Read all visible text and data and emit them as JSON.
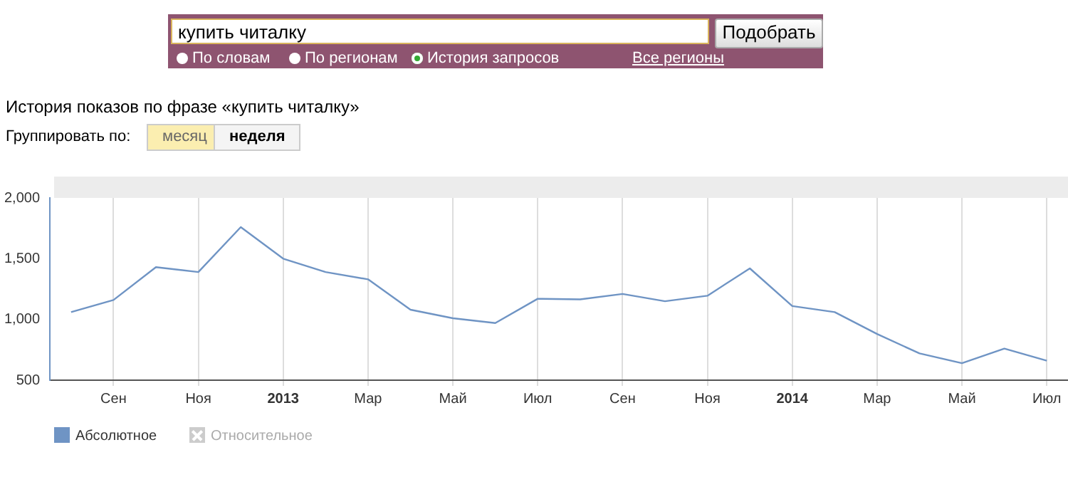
{
  "chart_data": {
    "type": "line",
    "title": "История показов по фразе «купить читалку»",
    "categories": [
      null,
      "Сен",
      null,
      "Ноя",
      null,
      "2013",
      null,
      "Мар",
      null,
      "Май",
      null,
      "Июл",
      null,
      "Сен",
      null,
      "Ноя",
      null,
      "2014",
      null,
      "Мар",
      null,
      "Май",
      null,
      "Июл"
    ],
    "series": [
      {
        "name": "Абсолютное",
        "color": "#6f94c4",
        "values": [
          1060,
          1160,
          1430,
          1390,
          1760,
          1500,
          1390,
          1330,
          1080,
          1010,
          970,
          1170,
          1165,
          1210,
          1150,
          1195,
          1420,
          1110,
          1060,
          880,
          720,
          640,
          760,
          660
        ]
      }
    ],
    "ylim": [
      500,
      2000
    ],
    "yticks": [
      {
        "value": 500,
        "label": "500"
      },
      {
        "value": 1000,
        "label": "1,000"
      },
      {
        "value": 1500,
        "label": "1,500"
      },
      {
        "value": 2000,
        "label": "2,000"
      }
    ],
    "grid": "x",
    "legend": "bottom left",
    "marker": "none",
    "line_style": "solid",
    "annotations": [
      "купить читалку",
      "Подобрать",
      "По словам",
      "По регионам",
      "История запросов",
      "Все регионы",
      "Группировать по:",
      "месяц",
      "неделя",
      "Относительное"
    ]
  }
}
